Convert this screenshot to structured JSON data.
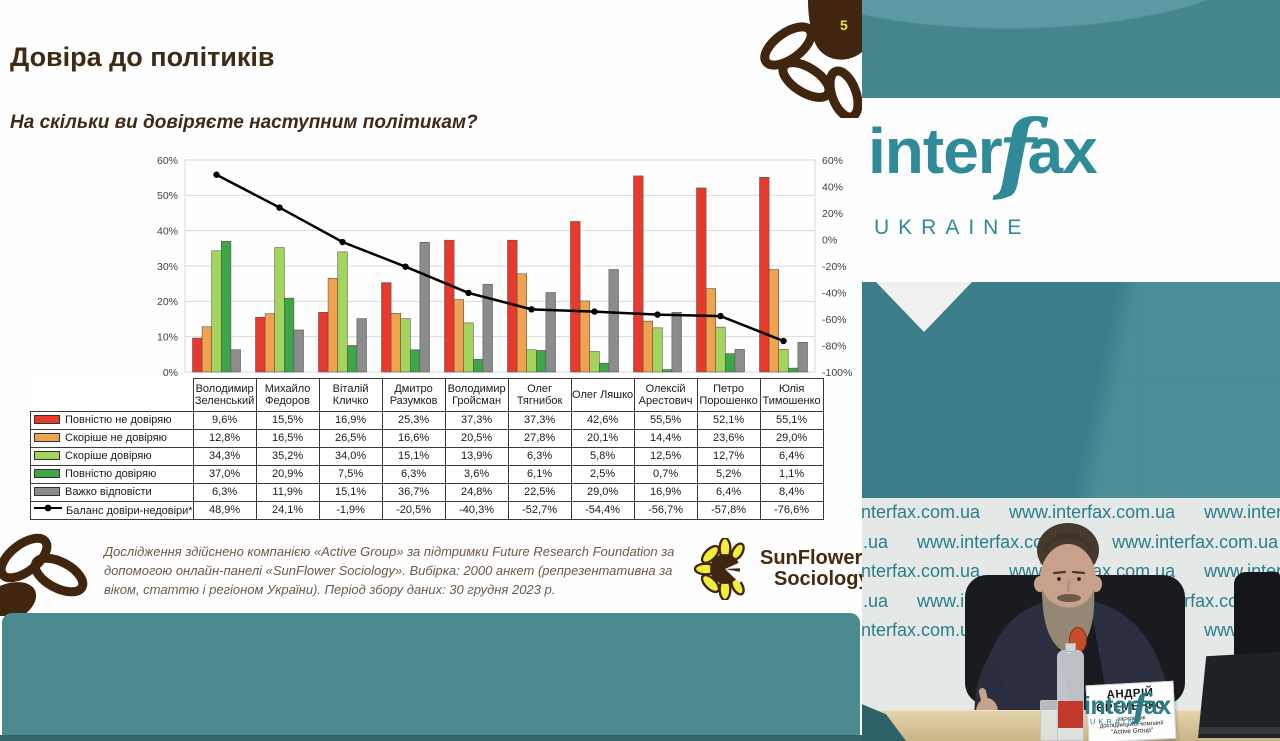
{
  "slide": {
    "page_number": "5",
    "title": "Довіра до політиків",
    "subtitle": "На скільки ви довіряєте наступним політикам?",
    "footnote": "Дослідження здійснено компанією «Active Group» за підтримки Future Research Foundation за допомогою онлайн-панелі «SunFlower Sociology». Вибірка: 2000 анкет (репрезентативна за віком, статтю і регіоном України). Період збору даних: 30 грудня 2023 р.",
    "sunflower_logo": {
      "line1": "SunFlower",
      "line2": "Sociology"
    }
  },
  "chart_data": {
    "type": "bar+line",
    "categories": [
      "Володимир Зеленський",
      "Михайло Федоров",
      "Віталій Кличко",
      "Дмитро Разумков",
      "Володимир Гройсман",
      "Олег Тягнибок",
      "Олег Ляшко",
      "Олексій Арестович",
      "Петро Порошенко",
      "Юлія Тимошенко"
    ],
    "left_axis": {
      "min": 0,
      "max": 60,
      "step": 10,
      "ticks": [
        "0%",
        "10%",
        "20%",
        "30%",
        "40%",
        "50%",
        "60%"
      ]
    },
    "right_axis": {
      "min": -100,
      "max": 60,
      "step": 20,
      "ticks": [
        "60%",
        "40%",
        "20%",
        "0%",
        "-20%",
        "-40%",
        "-60%",
        "-80%",
        "-100%"
      ]
    },
    "series": [
      {
        "name": "Повністю не довіряю",
        "color": "#e8392c",
        "values": [
          9.6,
          15.5,
          16.9,
          25.3,
          37.3,
          37.3,
          42.6,
          55.5,
          52.1,
          55.1
        ]
      },
      {
        "name": "Скоріше не довіряю",
        "color": "#f0a24f",
        "values": [
          12.8,
          16.5,
          26.5,
          16.6,
          20.5,
          27.8,
          20.1,
          14.4,
          23.6,
          29.0
        ]
      },
      {
        "name": "Скоріше довіряю",
        "color": "#a3d55d",
        "values": [
          34.3,
          35.2,
          34.0,
          15.1,
          13.9,
          6.3,
          5.8,
          12.5,
          12.7,
          6.4
        ]
      },
      {
        "name": "Повністю довіряю",
        "color": "#3ea648",
        "values": [
          37.0,
          20.9,
          7.5,
          6.3,
          3.6,
          6.1,
          2.5,
          0.7,
          5.2,
          1.1
        ]
      },
      {
        "name": "Важко відповісти",
        "color": "#8c8c8c",
        "values": [
          6.3,
          11.9,
          15.1,
          36.7,
          24.8,
          22.5,
          29.0,
          16.9,
          6.4,
          8.4
        ]
      }
    ],
    "line_series": {
      "name": "Баланс довіри-недовіри*",
      "color": "#000000",
      "values": [
        48.9,
        24.1,
        -1.9,
        -20.5,
        -40.3,
        -52.7,
        -54.4,
        -56.7,
        -57.8,
        -76.6
      ]
    },
    "value_format": "comma-decimal-percent",
    "grid": true,
    "legend_position": "table-left-column"
  },
  "video": {
    "logo": {
      "part1": "inter",
      "swash": "f",
      "part2": "ax",
      "subtitle": "UKRAINE"
    },
    "backdrop_url": "www.interfax.com.ua",
    "nameplate": {
      "name_line1": "АНДРІЙ",
      "name_line2": "ЄРЕМЕНКО",
      "role": "засновник",
      "org": "дослідницької компанії",
      "company": "\"Active Group\""
    },
    "watermark": {
      "part1": "inter",
      "swash": "f",
      "part2": "ax",
      "subtitle": "UKRAINE"
    }
  },
  "colors": {
    "slide_accent_brown": "#3f2a16",
    "teal_band": "#4b8a8f",
    "interfax_teal": "#2e8b97",
    "backdrop_text_teal": "#2c7d8c"
  }
}
